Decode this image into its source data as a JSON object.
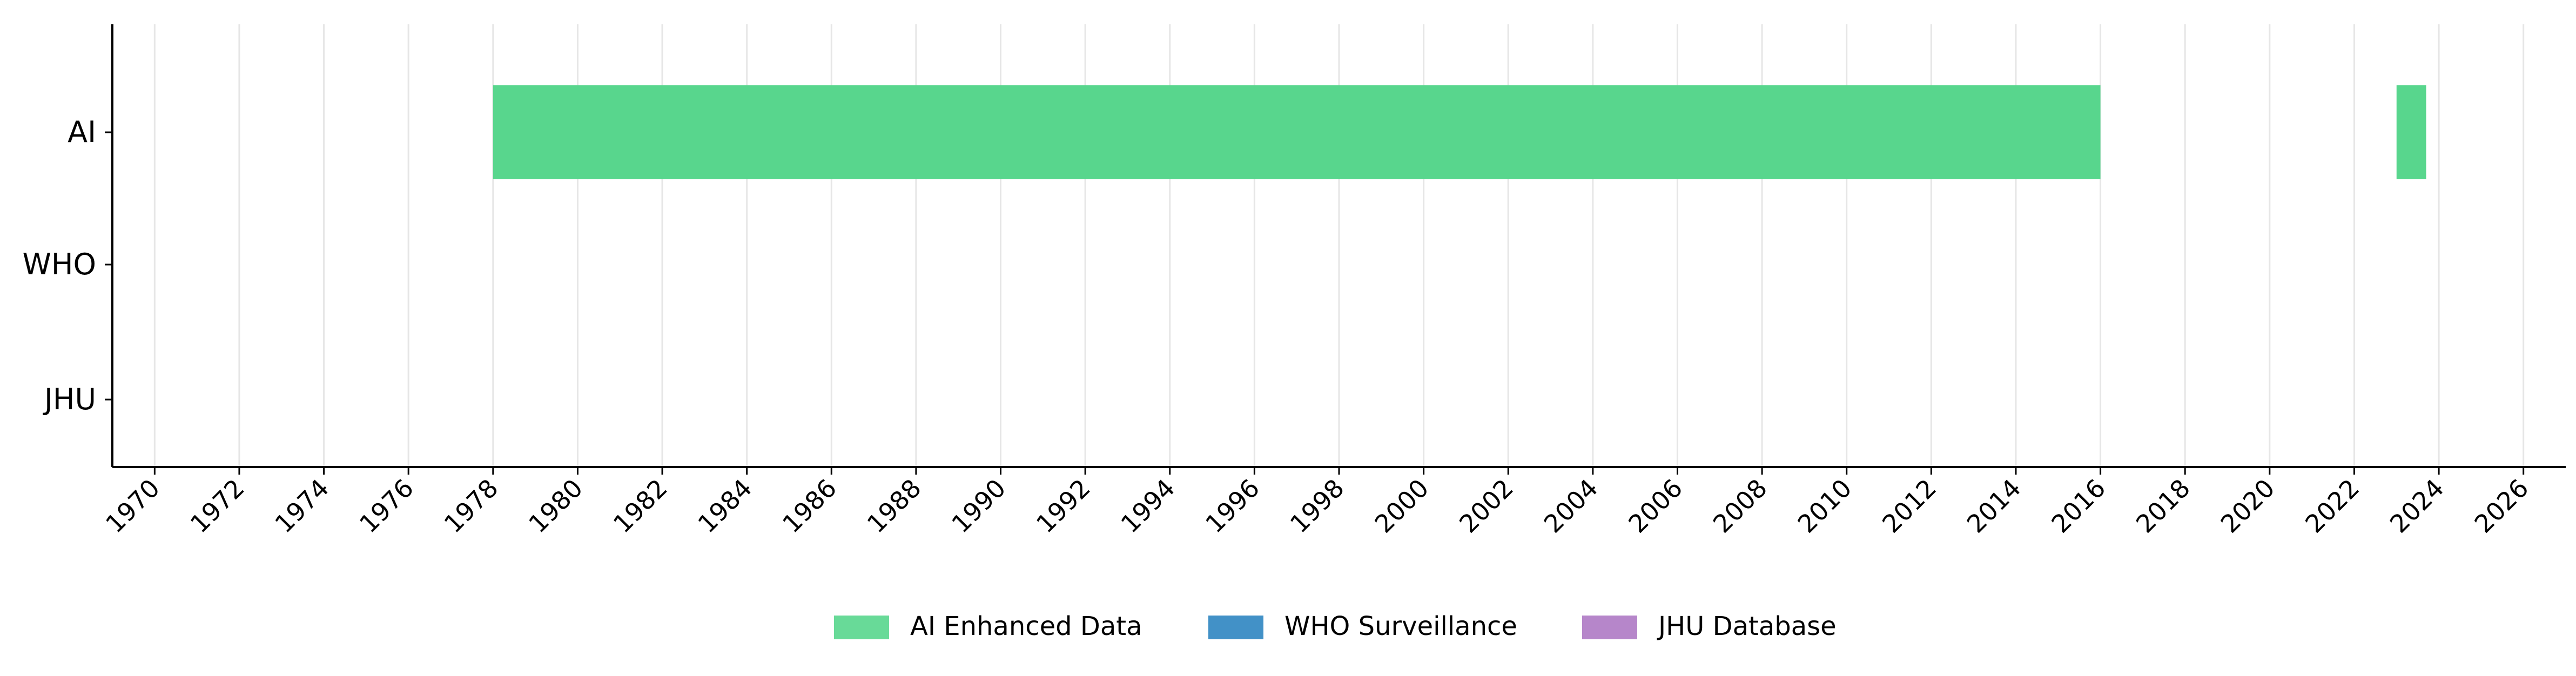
{
  "chart_data": {
    "type": "gantt",
    "title": "",
    "xlabel": "",
    "ylabel": "",
    "x_range": [
      1969,
      2027
    ],
    "x_ticks": [
      "1970",
      "1972",
      "1974",
      "1976",
      "1978",
      "1980",
      "1982",
      "1984",
      "1986",
      "1988",
      "1990",
      "1992",
      "1994",
      "1996",
      "1998",
      "2000",
      "2002",
      "2004",
      "2006",
      "2008",
      "2010",
      "2012",
      "2014",
      "2016",
      "2018",
      "2020",
      "2022",
      "2024",
      "2026"
    ],
    "categories": [
      "AI",
      "WHO",
      "JHU"
    ],
    "grid": "vertical",
    "legend_position": "bottom-center",
    "series": [
      {
        "name": "AI Enhanced Data",
        "color": "#58d68d",
        "category": "AI",
        "intervals": [
          {
            "start": 1978.0,
            "end": 2016.0
          },
          {
            "start": 2023.0,
            "end": 2023.7
          }
        ]
      },
      {
        "name": "WHO Surveillance",
        "color": "#2e86c1",
        "category": "WHO",
        "intervals": []
      },
      {
        "name": "JHU Database",
        "color": "#af7ac5",
        "category": "JHU",
        "intervals": []
      }
    ]
  }
}
